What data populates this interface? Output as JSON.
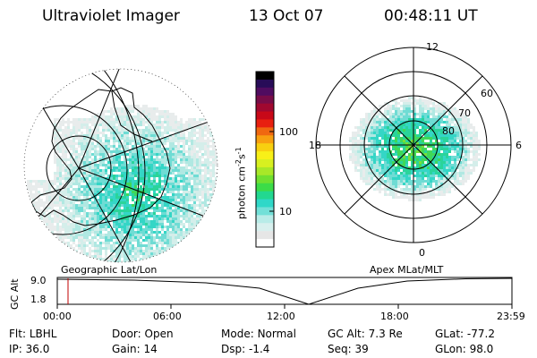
{
  "header": {
    "title": "Ultraviolet Imager",
    "date": "13 Oct 07",
    "time": "00:48:11 UT"
  },
  "left_map": {
    "label": "Geographic Lat/Lon"
  },
  "right_map": {
    "label": "Apex MLat/MLT",
    "mlt_labels": {
      "top": "12",
      "left": "18",
      "right": "6",
      "bottom": "0"
    },
    "lat_labels": [
      "60",
      "70",
      "80"
    ]
  },
  "colorbar": {
    "unit_label": "photon cm",
    "unit_sup1": "-2",
    "unit_mid": "s",
    "unit_sup2": "-1",
    "ticks": [
      "100",
      "10"
    ],
    "colors": [
      "#ffffff",
      "#e6e6e6",
      "#d8f0ee",
      "#b8ece8",
      "#72e0d8",
      "#2fd8c8",
      "#22d890",
      "#3cdc48",
      "#70e030",
      "#a8e828",
      "#d8f020",
      "#f8f018",
      "#f8d010",
      "#f8a010",
      "#f06810",
      "#e82010",
      "#c80818",
      "#a00830",
      "#780c48",
      "#500c60",
      "#280c58",
      "#000000"
    ]
  },
  "timeline": {
    "y_axis_label": "GC Alt",
    "y_ticks": [
      "9.0",
      "1.8"
    ],
    "x_ticks": [
      "00:00",
      "06:00",
      "12:00",
      "18:00",
      "23:59"
    ],
    "current_marker_hour": 0.8
  },
  "info": {
    "row1": [
      {
        "label": "Flt:",
        "value": "LBHL"
      },
      {
        "label": "Door:",
        "value": "Open"
      },
      {
        "label": "Mode:",
        "value": "Normal"
      },
      {
        "label": "GC Alt:",
        "value": "7.3 Re"
      },
      {
        "label": "GLat:",
        "value": "-77.2"
      }
    ],
    "row2": [
      {
        "label": "IP:",
        "value": "36.0"
      },
      {
        "label": "Gain:",
        "value": "14"
      },
      {
        "label": "Dsp:",
        "value": "-1.4"
      },
      {
        "label": "Seq:",
        "value": "39"
      },
      {
        "label": "GLon:",
        "value": "98.0"
      }
    ]
  }
}
